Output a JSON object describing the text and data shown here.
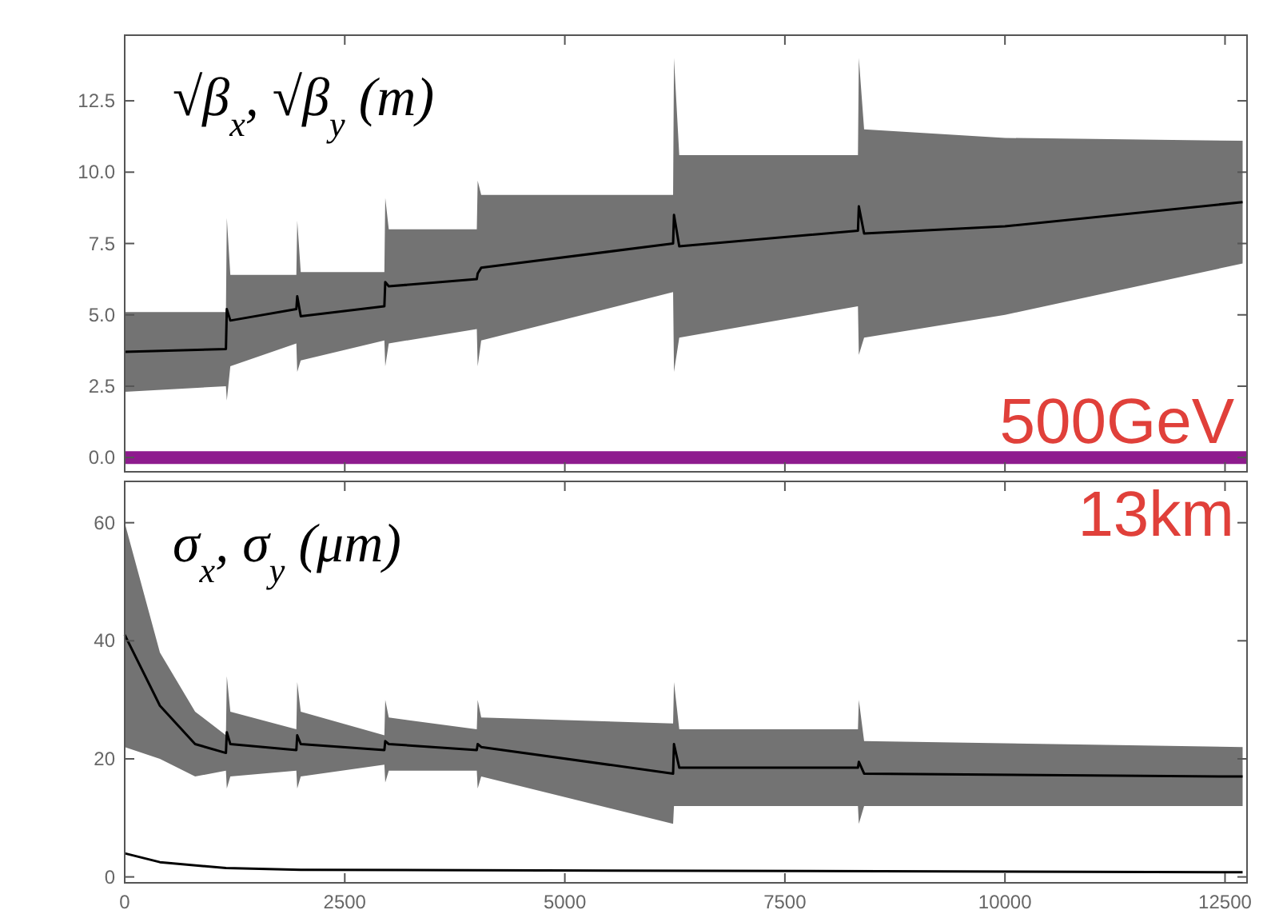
{
  "chart_data": [
    {
      "type": "line",
      "ylabel": "√β$_{x}$, √β$_{y}$ (m)",
      "xlim": [
        0,
        12750
      ],
      "xticks": [
        0,
        2500,
        5000,
        7500,
        10000,
        12500
      ],
      "ylim": [
        -0.5,
        14.8
      ],
      "yticks": [
        {
          "value": 0,
          "label": "0.0"
        },
        {
          "value": 2.5,
          "label": "2.5"
        },
        {
          "value": 5,
          "label": "5.0"
        },
        {
          "value": 7.5,
          "label": "7.5"
        },
        {
          "value": 10,
          "label": "10.0"
        },
        {
          "value": 12.5,
          "label": "12.5"
        }
      ],
      "tick_labels": "y",
      "ref_lines": [
        {
          "axis": "y",
          "value": 0,
          "label": "500GeV",
          "color": "#8e1b8e"
        }
      ],
      "series": [
        {
          "color": "#000000",
          "x": [
            0,
            1150,
            1160,
            1200,
            1950,
            1960,
            2000,
            2950,
            2960,
            3000,
            4000,
            4010,
            4050,
            6230,
            6240,
            6300,
            8330,
            8340,
            8400,
            10000,
            12700
          ],
          "upper": [
            5.1,
            5.1,
            8.4,
            6.4,
            6.4,
            8.3,
            6.5,
            6.5,
            9.1,
            8.0,
            8.0,
            9.7,
            9.2,
            9.2,
            14.0,
            10.6,
            10.6,
            14.0,
            11.5,
            11.2,
            11.1
          ],
          "lower": [
            2.3,
            2.5,
            2.0,
            3.2,
            4.0,
            3.0,
            3.4,
            4.1,
            3.2,
            4.0,
            4.5,
            3.2,
            4.1,
            5.8,
            3.0,
            4.2,
            5.3,
            3.6,
            4.2,
            5.0,
            6.8
          ],
          "values": [
            3.7,
            3.8,
            5.2,
            4.8,
            5.2,
            5.65,
            4.95,
            5.3,
            6.15,
            6.0,
            6.25,
            6.45,
            6.65,
            7.5,
            8.5,
            7.4,
            7.95,
            8.8,
            7.85,
            8.1,
            8.95
          ]
        }
      ]
    },
    {
      "type": "line",
      "ylabel": "σ$_{x}$, σ$_{y}$ (μm)",
      "xlim": [
        0,
        12750
      ],
      "xticks": [
        0,
        2500,
        5000,
        7500,
        10000,
        12500
      ],
      "ylim": [
        -1,
        67
      ],
      "yticks": [
        0,
        20,
        40,
        60
      ],
      "annotations": [
        "13km"
      ],
      "series": [
        {
          "color": "#000000",
          "x": [
            0,
            400,
            800,
            1150,
            1160,
            1200,
            1950,
            1960,
            2000,
            2950,
            2960,
            3000,
            4000,
            4010,
            4050,
            6230,
            6240,
            6300,
            8330,
            8340,
            8400,
            12700
          ],
          "upper": [
            60,
            38,
            28,
            24,
            34,
            28,
            25,
            33,
            28,
            24,
            30,
            27,
            25,
            30,
            27,
            26,
            33,
            25,
            25,
            30,
            23,
            22
          ],
          "lower": [
            22,
            20,
            17,
            18,
            15,
            17,
            18,
            15,
            17,
            19,
            16,
            18,
            18,
            15,
            17,
            9,
            12,
            12,
            12,
            9,
            12,
            12
          ],
          "values": [
            41,
            29,
            22.5,
            21,
            24.5,
            22.5,
            21.5,
            24,
            22.5,
            21.5,
            23,
            22.5,
            21.5,
            22.5,
            22,
            17.5,
            22.5,
            18.5,
            18.5,
            19.5,
            17.5,
            17
          ]
        },
        {
          "color": "#000000",
          "x": [
            0,
            400,
            1150,
            2000,
            12700
          ],
          "values": [
            4,
            2.5,
            1.5,
            1.2,
            0.8
          ]
        }
      ]
    }
  ]
}
